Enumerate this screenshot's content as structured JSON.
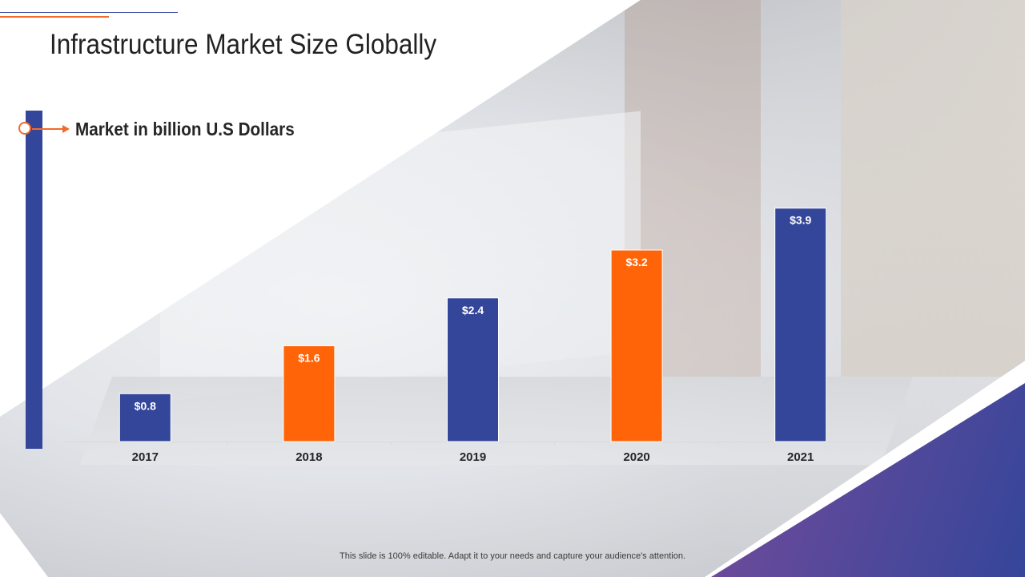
{
  "slide": {
    "title": "Infrastructure Market Size Globally",
    "footer": "This slide is 100% editable. Adapt it to your needs and capture your audience's attention."
  },
  "colors": {
    "blue": "#34469a",
    "orange": "#ff6408",
    "accent": "#f26a2c"
  },
  "chart_data": {
    "type": "bar",
    "title": "Market in billion U.S Dollars",
    "categories": [
      "2017",
      "2018",
      "2019",
      "2020",
      "2021"
    ],
    "values": [
      0.8,
      1.6,
      2.4,
      3.2,
      3.9
    ],
    "data_labels": [
      "$0.8",
      "$1.6",
      "$2.4",
      "$3.2",
      "$3.9"
    ],
    "bar_colors": [
      "#34469a",
      "#ff6408",
      "#34469a",
      "#ff6408",
      "#34469a"
    ],
    "ylim": [
      0,
      4.7
    ],
    "xlabel": "",
    "ylabel": "",
    "grid": false,
    "legend": false
  }
}
